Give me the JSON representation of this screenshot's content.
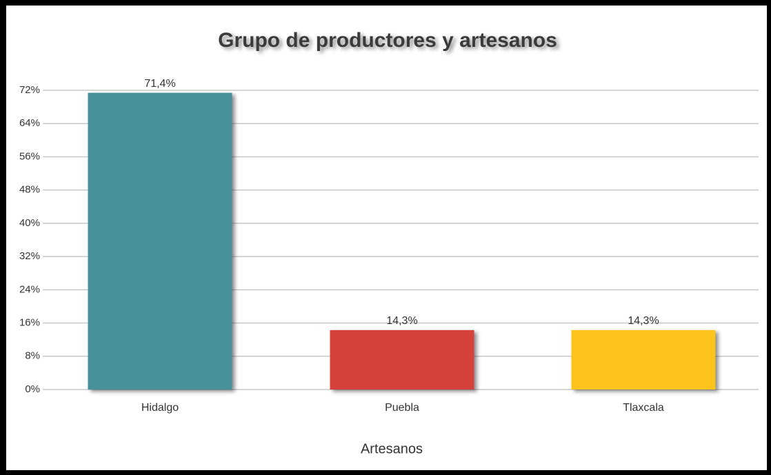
{
  "chart_data": {
    "type": "bar",
    "title": "Grupo de productores y artesanos",
    "x_label": "Artesanos",
    "categories": [
      "Hidalgo",
      "Puebla",
      "Tlaxcala"
    ],
    "values": [
      71.4,
      14.3,
      14.3
    ],
    "value_labels": [
      "71,4%",
      "14,3%",
      "14,3%"
    ],
    "colors": [
      "#46919b",
      "#d5433b",
      "#fbc31c"
    ],
    "ylim": [
      0,
      72
    ],
    "yticks": [
      {
        "value": 0,
        "label": "0%"
      },
      {
        "value": 8,
        "label": "8%"
      },
      {
        "value": 16,
        "label": "16%"
      },
      {
        "value": 24,
        "label": "24%"
      },
      {
        "value": 32,
        "label": "32%"
      },
      {
        "value": 40,
        "label": "40%"
      },
      {
        "value": 48,
        "label": "48%"
      },
      {
        "value": 56,
        "label": "56%"
      },
      {
        "value": 64,
        "label": "64%"
      },
      {
        "value": 72,
        "label": "72%"
      }
    ],
    "grid": true
  }
}
